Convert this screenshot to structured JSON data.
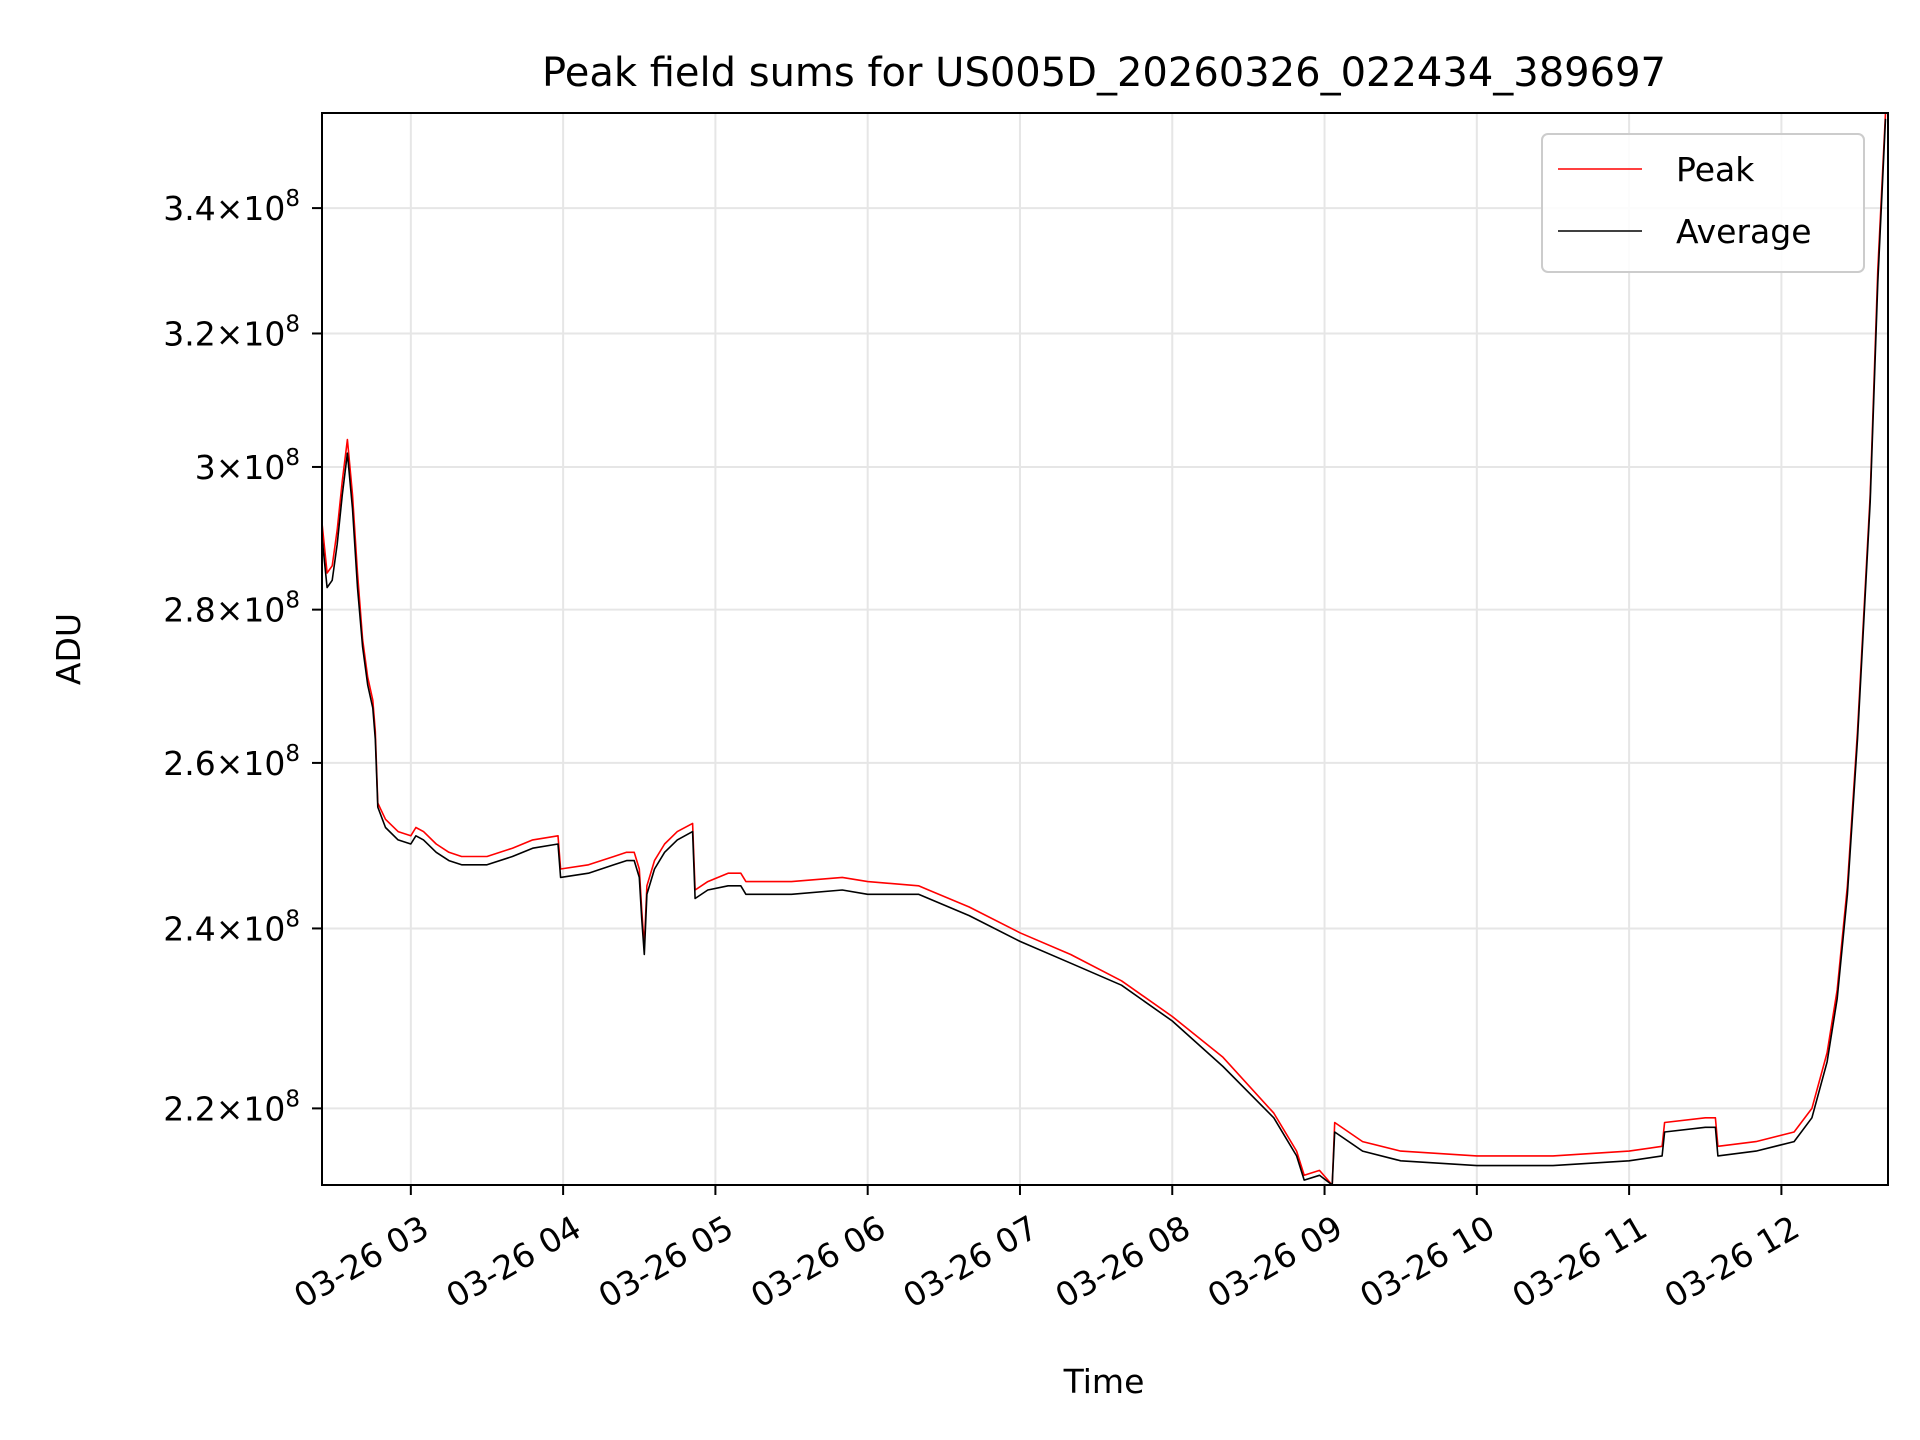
{
  "chart_data": {
    "type": "line",
    "title": "Peak field sums for US005D_20260326_022434_389697",
    "xlabel": "Time",
    "ylabel": "ADU",
    "yscale": "log",
    "grid": true,
    "legend_position": "top-right",
    "xlim": [
      "2026-03-26 02:25",
      "2026-03-26 12:42"
    ],
    "ylim": [
      212000000.0,
      356000000.0
    ],
    "x_ticks": [
      {
        "value": "2026-03-26 03:00",
        "label": "03-26 03"
      },
      {
        "value": "2026-03-26 04:00",
        "label": "03-26 04"
      },
      {
        "value": "2026-03-26 05:00",
        "label": "03-26 05"
      },
      {
        "value": "2026-03-26 06:00",
        "label": "03-26 06"
      },
      {
        "value": "2026-03-26 07:00",
        "label": "03-26 07"
      },
      {
        "value": "2026-03-26 08:00",
        "label": "03-26 08"
      },
      {
        "value": "2026-03-26 09:00",
        "label": "03-26 09"
      },
      {
        "value": "2026-03-26 10:00",
        "label": "03-26 10"
      },
      {
        "value": "2026-03-26 11:00",
        "label": "03-26 11"
      },
      {
        "value": "2026-03-26 12:00",
        "label": "03-26 12"
      }
    ],
    "y_ticks": [
      {
        "value": 220000000.0,
        "mantissa": "2.2",
        "base": "10",
        "exp": "8"
      },
      {
        "value": 240000000.0,
        "mantissa": "2.4",
        "base": "10",
        "exp": "8"
      },
      {
        "value": 260000000.0,
        "mantissa": "2.6",
        "base": "10",
        "exp": "8"
      },
      {
        "value": 280000000.0,
        "mantissa": "2.8",
        "base": "10",
        "exp": "8"
      },
      {
        "value": 300000000.0,
        "mantissa": "3",
        "base": "10",
        "exp": "8"
      },
      {
        "value": 320000000.0,
        "mantissa": "3.2",
        "base": "10",
        "exp": "8"
      },
      {
        "value": 340000000.0,
        "mantissa": "3.4",
        "base": "10",
        "exp": "8"
      }
    ],
    "series": [
      {
        "name": "Peak",
        "color": "#ff0000",
        "points": [
          [
            "2026-03-26 02:25",
            292000000.0
          ],
          [
            "2026-03-26 02:27",
            285000000.0
          ],
          [
            "2026-03-26 02:29",
            286000000.0
          ],
          [
            "2026-03-26 02:31",
            291000000.0
          ],
          [
            "2026-03-26 02:33",
            298000000.0
          ],
          [
            "2026-03-26 02:35",
            304000000.0
          ],
          [
            "2026-03-26 02:37",
            296000000.0
          ],
          [
            "2026-03-26 02:39",
            285000000.0
          ],
          [
            "2026-03-26 02:41",
            276000000.0
          ],
          [
            "2026-03-26 02:43",
            271000000.0
          ],
          [
            "2026-03-26 02:45",
            268000000.0
          ],
          [
            "2026-03-26 02:46",
            264000000.0
          ],
          [
            "2026-03-26 02:47",
            255000000.0
          ],
          [
            "2026-03-26 02:50",
            253000000.0
          ],
          [
            "2026-03-26 02:55",
            251500000.0
          ],
          [
            "2026-03-26 03:00",
            251000000.0
          ],
          [
            "2026-03-26 03:02",
            252000000.0
          ],
          [
            "2026-03-26 03:05",
            251500000.0
          ],
          [
            "2026-03-26 03:10",
            250000000.0
          ],
          [
            "2026-03-26 03:15",
            249000000.0
          ],
          [
            "2026-03-26 03:20",
            248500000.0
          ],
          [
            "2026-03-26 03:30",
            248500000.0
          ],
          [
            "2026-03-26 03:40",
            249500000.0
          ],
          [
            "2026-03-26 03:48",
            250500000.0
          ],
          [
            "2026-03-26 03:58",
            251000000.0
          ],
          [
            "2026-03-26 03:59",
            247000000.0
          ],
          [
            "2026-03-26 04:10",
            247500000.0
          ],
          [
            "2026-03-26 04:20",
            248500000.0
          ],
          [
            "2026-03-26 04:25",
            249000000.0
          ],
          [
            "2026-03-26 04:28",
            249000000.0
          ],
          [
            "2026-03-26 04:30",
            247000000.0
          ],
          [
            "2026-03-26 04:31",
            242000000.0
          ],
          [
            "2026-03-26 04:32",
            238000000.0
          ],
          [
            "2026-03-26 04:33",
            245000000.0
          ],
          [
            "2026-03-26 04:36",
            248000000.0
          ],
          [
            "2026-03-26 04:40",
            250000000.0
          ],
          [
            "2026-03-26 04:45",
            251500000.0
          ],
          [
            "2026-03-26 04:51",
            252500000.0
          ],
          [
            "2026-03-26 04:52",
            244500000.0
          ],
          [
            "2026-03-26 04:57",
            245500000.0
          ],
          [
            "2026-03-26 05:05",
            246500000.0
          ],
          [
            "2026-03-26 05:10",
            246500000.0
          ],
          [
            "2026-03-26 05:12",
            245500000.0
          ],
          [
            "2026-03-26 05:30",
            245500000.0
          ],
          [
            "2026-03-26 05:50",
            246000000.0
          ],
          [
            "2026-03-26 06:00",
            245500000.0
          ],
          [
            "2026-03-26 06:20",
            245000000.0
          ],
          [
            "2026-03-26 06:40",
            242500000.0
          ],
          [
            "2026-03-26 07:00",
            239500000.0
          ],
          [
            "2026-03-26 07:20",
            237000000.0
          ],
          [
            "2026-03-26 07:40",
            234000000.0
          ],
          [
            "2026-03-26 08:00",
            230000000.0
          ],
          [
            "2026-03-26 08:20",
            225500000.0
          ],
          [
            "2026-03-26 08:40",
            219500000.0
          ],
          [
            "2026-03-26 08:49",
            215500000.0
          ],
          [
            "2026-03-26 08:52",
            213000000.0
          ],
          [
            "2026-03-26 08:58",
            213500000.0
          ],
          [
            "2026-03-26 09:03",
            212000000.0
          ],
          [
            "2026-03-26 09:04",
            218500000.0
          ],
          [
            "2026-03-26 09:15",
            216500000.0
          ],
          [
            "2026-03-26 09:30",
            215500000.0
          ],
          [
            "2026-03-26 10:00",
            215000000.0
          ],
          [
            "2026-03-26 10:30",
            215000000.0
          ],
          [
            "2026-03-26 11:00",
            215500000.0
          ],
          [
            "2026-03-26 11:13",
            216000000.0
          ],
          [
            "2026-03-26 11:14",
            218500000.0
          ],
          [
            "2026-03-26 11:30",
            219000000.0
          ],
          [
            "2026-03-26 11:34",
            219000000.0
          ],
          [
            "2026-03-26 11:35",
            216000000.0
          ],
          [
            "2026-03-26 11:50",
            216500000.0
          ],
          [
            "2026-03-26 12:05",
            217500000.0
          ],
          [
            "2026-03-26 12:12",
            220000000.0
          ],
          [
            "2026-03-26 12:18",
            226000000.0
          ],
          [
            "2026-03-26 12:22",
            233000000.0
          ],
          [
            "2026-03-26 12:26",
            245000000.0
          ],
          [
            "2026-03-26 12:30",
            264000000.0
          ],
          [
            "2026-03-26 12:35",
            296000000.0
          ],
          [
            "2026-03-26 12:38",
            330000000.0
          ],
          [
            "2026-03-26 12:41",
            356000000.0
          ]
        ]
      },
      {
        "name": "Average",
        "color": "#000000",
        "points": [
          [
            "2026-03-26 02:25",
            290000000.0
          ],
          [
            "2026-03-26 02:27",
            283000000.0
          ],
          [
            "2026-03-26 02:29",
            284000000.0
          ],
          [
            "2026-03-26 02:31",
            289000000.0
          ],
          [
            "2026-03-26 02:33",
            296000000.0
          ],
          [
            "2026-03-26 02:35",
            302000000.0
          ],
          [
            "2026-03-26 02:37",
            294000000.0
          ],
          [
            "2026-03-26 02:39",
            283000000.0
          ],
          [
            "2026-03-26 02:41",
            275000000.0
          ],
          [
            "2026-03-26 02:43",
            270000000.0
          ],
          [
            "2026-03-26 02:45",
            267000000.0
          ],
          [
            "2026-03-26 02:46",
            263000000.0
          ],
          [
            "2026-03-26 02:47",
            254500000.0
          ],
          [
            "2026-03-26 02:50",
            252000000.0
          ],
          [
            "2026-03-26 02:55",
            250500000.0
          ],
          [
            "2026-03-26 03:00",
            250000000.0
          ],
          [
            "2026-03-26 03:02",
            251000000.0
          ],
          [
            "2026-03-26 03:05",
            250500000.0
          ],
          [
            "2026-03-26 03:10",
            249000000.0
          ],
          [
            "2026-03-26 03:15",
            248000000.0
          ],
          [
            "2026-03-26 03:20",
            247500000.0
          ],
          [
            "2026-03-26 03:30",
            247500000.0
          ],
          [
            "2026-03-26 03:40",
            248500000.0
          ],
          [
            "2026-03-26 03:48",
            249500000.0
          ],
          [
            "2026-03-26 03:58",
            250000000.0
          ],
          [
            "2026-03-26 03:59",
            246000000.0
          ],
          [
            "2026-03-26 04:10",
            246500000.0
          ],
          [
            "2026-03-26 04:20",
            247500000.0
          ],
          [
            "2026-03-26 04:25",
            248000000.0
          ],
          [
            "2026-03-26 04:28",
            248000000.0
          ],
          [
            "2026-03-26 04:30",
            246000000.0
          ],
          [
            "2026-03-26 04:31",
            241000000.0
          ],
          [
            "2026-03-26 04:32",
            237000000.0
          ],
          [
            "2026-03-26 04:33",
            244000000.0
          ],
          [
            "2026-03-26 04:36",
            247000000.0
          ],
          [
            "2026-03-26 04:40",
            249000000.0
          ],
          [
            "2026-03-26 04:45",
            250500000.0
          ],
          [
            "2026-03-26 04:51",
            251500000.0
          ],
          [
            "2026-03-26 04:52",
            243500000.0
          ],
          [
            "2026-03-26 04:57",
            244500000.0
          ],
          [
            "2026-03-26 05:05",
            245000000.0
          ],
          [
            "2026-03-26 05:10",
            245000000.0
          ],
          [
            "2026-03-26 05:12",
            244000000.0
          ],
          [
            "2026-03-26 05:30",
            244000000.0
          ],
          [
            "2026-03-26 05:50",
            244500000.0
          ],
          [
            "2026-03-26 06:00",
            244000000.0
          ],
          [
            "2026-03-26 06:20",
            244000000.0
          ],
          [
            "2026-03-26 06:40",
            241500000.0
          ],
          [
            "2026-03-26 07:00",
            238500000.0
          ],
          [
            "2026-03-26 07:20",
            236000000.0
          ],
          [
            "2026-03-26 07:40",
            233500000.0
          ],
          [
            "2026-03-26 08:00",
            229500000.0
          ],
          [
            "2026-03-26 08:20",
            224500000.0
          ],
          [
            "2026-03-26 08:40",
            219000000.0
          ],
          [
            "2026-03-26 08:49",
            215000000.0
          ],
          [
            "2026-03-26 08:52",
            212500000.0
          ],
          [
            "2026-03-26 08:58",
            213000000.0
          ],
          [
            "2026-03-26 09:03",
            212000000.0
          ],
          [
            "2026-03-26 09:04",
            217500000.0
          ],
          [
            "2026-03-26 09:15",
            215500000.0
          ],
          [
            "2026-03-26 09:30",
            214500000.0
          ],
          [
            "2026-03-26 10:00",
            214000000.0
          ],
          [
            "2026-03-26 10:30",
            214000000.0
          ],
          [
            "2026-03-26 11:00",
            214500000.0
          ],
          [
            "2026-03-26 11:13",
            215000000.0
          ],
          [
            "2026-03-26 11:14",
            217500000.0
          ],
          [
            "2026-03-26 11:30",
            218000000.0
          ],
          [
            "2026-03-26 11:34",
            218000000.0
          ],
          [
            "2026-03-26 11:35",
            215000000.0
          ],
          [
            "2026-03-26 11:50",
            215500000.0
          ],
          [
            "2026-03-26 12:05",
            216500000.0
          ],
          [
            "2026-03-26 12:12",
            219000000.0
          ],
          [
            "2026-03-26 12:18",
            225000000.0
          ],
          [
            "2026-03-26 12:22",
            232000000.0
          ],
          [
            "2026-03-26 12:26",
            244000000.0
          ],
          [
            "2026-03-26 12:30",
            263000000.0
          ],
          [
            "2026-03-26 12:35",
            295000000.0
          ],
          [
            "2026-03-26 12:38",
            328000000.0
          ],
          [
            "2026-03-26 12:41",
            355000000.0
          ]
        ]
      }
    ]
  }
}
